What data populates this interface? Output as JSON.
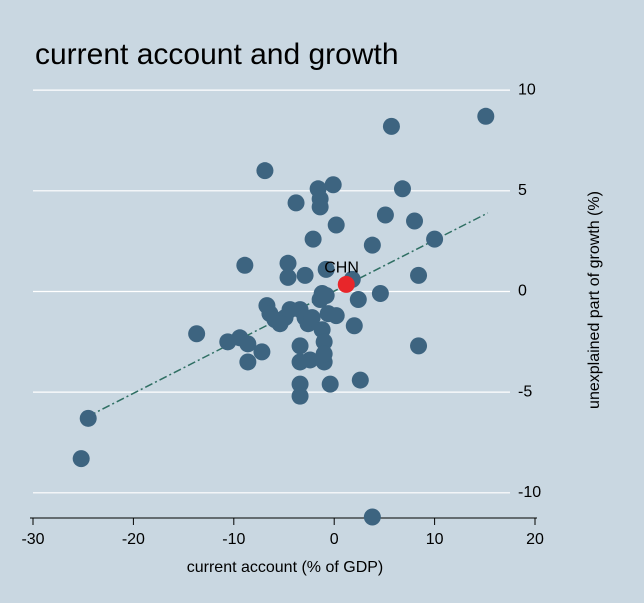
{
  "chart_data": {
    "type": "scatter",
    "title": "current account and growth",
    "x_label": "current account (% of GDP)",
    "y_label": "unexplained part of growth (%)",
    "xlim": [
      -30,
      20
    ],
    "xticks": [
      -30,
      -20,
      -10,
      0,
      10,
      20
    ],
    "ylim": [
      -11.25,
      11
    ],
    "yticks": [
      -10,
      -5,
      0,
      5,
      10
    ],
    "grid": true,
    "y_axis_side": "right",
    "series": [
      {
        "color": "#3d6480",
        "x": [
          -25.2,
          -24.5,
          -13.7,
          -10.6,
          -9.4,
          -8.6,
          -8.9,
          -8.6,
          -7.2,
          -6.9,
          -6.7,
          -6.4,
          -5.9,
          -4.9,
          -5.4,
          -4.4,
          -4.6,
          -4.6,
          -3.8,
          -3.4,
          -3.4,
          -3.4,
          -3.4,
          -3.4,
          -2.9,
          -2.9,
          -2.6,
          -2.4,
          -2.2,
          -2.1,
          -1.6,
          -1.4,
          -1.4,
          -1.4,
          -1.2,
          -1.2,
          -1.0,
          -1.0,
          -1.0,
          -0.8,
          -0.6,
          -0.4,
          -0.1,
          0.2,
          0.2,
          2.0,
          1.8,
          2.4,
          2.6,
          3.8,
          3.8,
          4.6,
          5.1,
          5.7,
          6.8,
          8.0,
          8.4,
          8.4,
          10.0,
          15.1,
          -0.8
        ],
        "y": [
          -8.3,
          -6.3,
          -2.1,
          -2.5,
          -2.3,
          -2.6,
          1.3,
          -3.5,
          -3.0,
          6.0,
          -0.7,
          -1.1,
          -1.4,
          -1.3,
          -1.6,
          -0.9,
          1.4,
          0.7,
          4.4,
          -0.9,
          -2.7,
          -3.5,
          -4.6,
          -5.2,
          0.8,
          -1.3,
          -1.6,
          -3.4,
          -1.3,
          2.6,
          5.1,
          4.6,
          4.2,
          -0.4,
          -1.9,
          -0.1,
          -2.5,
          -3.5,
          -3.1,
          1.1,
          -1.1,
          -4.6,
          5.3,
          3.3,
          -1.2,
          -1.7,
          0.6,
          -0.4,
          -4.4,
          2.3,
          -11.2,
          -0.1,
          3.8,
          8.2,
          5.1,
          3.5,
          0.8,
          -2.7,
          2.6,
          8.7,
          -0.2
        ]
      },
      {
        "name": "CHN",
        "color": "#e8262a",
        "x": [
          1.2
        ],
        "y": [
          0.35
        ]
      }
    ],
    "fit_line": {
      "color": "#2f6f63",
      "x": [
        -24.5,
        15.3
      ],
      "y": [
        -6.2,
        3.9
      ]
    }
  }
}
